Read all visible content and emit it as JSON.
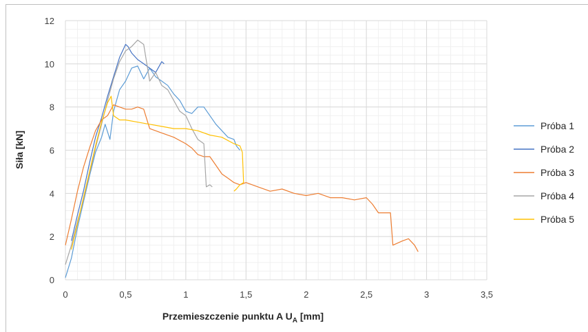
{
  "chart_data": {
    "type": "line",
    "xlabel": "Przemieszczenie punktu A U",
    "xlabel_sub": "A",
    "xlabel_unit": " [mm]",
    "ylabel": "Siła [kN]",
    "xlim": [
      0,
      3.5
    ],
    "ylim": [
      0,
      12
    ],
    "x_ticks": [
      "0",
      "0,5",
      "1",
      "1,5",
      "2",
      "2,5",
      "3",
      "3,5"
    ],
    "y_ticks": [
      "0",
      "2",
      "4",
      "6",
      "8",
      "10",
      "12"
    ],
    "grid": true,
    "legend_position": "right",
    "series": [
      {
        "name": "Próba 1",
        "color": "#5b9bd5",
        "x": [
          0.0,
          0.05,
          0.1,
          0.15,
          0.2,
          0.25,
          0.3,
          0.33,
          0.37,
          0.4,
          0.45,
          0.5,
          0.55,
          0.6,
          0.65,
          0.7,
          0.75,
          0.8,
          0.85,
          0.9,
          0.95,
          1.0,
          1.05,
          1.1,
          1.15,
          1.2,
          1.25,
          1.3,
          1.35,
          1.4,
          1.42,
          1.45
        ],
        "y": [
          0.1,
          1.0,
          2.4,
          3.6,
          4.8,
          5.9,
          6.6,
          7.2,
          6.5,
          7.8,
          8.8,
          9.2,
          9.8,
          9.9,
          9.3,
          9.8,
          9.4,
          9.2,
          9.0,
          8.6,
          8.3,
          7.8,
          7.7,
          8.0,
          8.0,
          7.6,
          7.2,
          6.9,
          6.6,
          6.5,
          6.2,
          6.0
        ]
      },
      {
        "name": "Próba 2",
        "color": "#4472c4",
        "x": [
          0.05,
          0.1,
          0.15,
          0.2,
          0.25,
          0.3,
          0.35,
          0.4,
          0.45,
          0.5,
          0.52,
          0.55,
          0.6,
          0.65,
          0.7,
          0.75,
          0.8,
          0.82
        ],
        "y": [
          1.8,
          3.0,
          4.1,
          5.4,
          6.6,
          7.5,
          8.5,
          9.4,
          10.3,
          10.9,
          10.8,
          10.5,
          10.2,
          10.0,
          9.8,
          9.6,
          10.1,
          10.0
        ]
      },
      {
        "name": "Próba 3",
        "color": "#ed7d31",
        "x": [
          0.0,
          0.05,
          0.1,
          0.15,
          0.2,
          0.25,
          0.3,
          0.35,
          0.4,
          0.45,
          0.5,
          0.55,
          0.6,
          0.65,
          0.7,
          0.8,
          0.9,
          1.0,
          1.05,
          1.1,
          1.15,
          1.2,
          1.25,
          1.3,
          1.35,
          1.4,
          1.45,
          1.5,
          1.6,
          1.7,
          1.8,
          1.9,
          2.0,
          2.1,
          2.2,
          2.3,
          2.4,
          2.5,
          2.55,
          2.6,
          2.65,
          2.7,
          2.72,
          2.8,
          2.85,
          2.9,
          2.93
        ],
        "y": [
          1.6,
          2.8,
          4.1,
          5.2,
          6.1,
          6.9,
          7.4,
          7.6,
          8.1,
          8.0,
          7.9,
          7.9,
          8.0,
          7.9,
          7.0,
          6.8,
          6.6,
          6.3,
          6.1,
          5.8,
          5.7,
          5.7,
          5.3,
          4.9,
          4.7,
          4.5,
          4.4,
          4.5,
          4.3,
          4.1,
          4.2,
          4.0,
          3.9,
          4.0,
          3.8,
          3.8,
          3.7,
          3.8,
          3.5,
          3.1,
          3.1,
          3.1,
          1.6,
          1.8,
          1.9,
          1.6,
          1.3
        ]
      },
      {
        "name": "Próba 4",
        "color": "#a5a5a5",
        "x": [
          0.0,
          0.05,
          0.1,
          0.15,
          0.2,
          0.25,
          0.3,
          0.35,
          0.4,
          0.45,
          0.5,
          0.55,
          0.6,
          0.65,
          0.7,
          0.75,
          0.8,
          0.85,
          0.9,
          0.95,
          1.0,
          1.05,
          1.1,
          1.15,
          1.17,
          1.2,
          1.22
        ],
        "y": [
          0.7,
          1.6,
          2.7,
          3.7,
          4.9,
          6.1,
          7.2,
          8.3,
          9.3,
          10.1,
          10.6,
          10.8,
          11.1,
          10.9,
          9.2,
          9.6,
          9.0,
          8.8,
          8.3,
          7.8,
          7.6,
          7.0,
          6.5,
          6.3,
          4.3,
          4.4,
          4.3
        ]
      },
      {
        "name": "Próba 5",
        "color": "#ffc000",
        "x": [
          0.05,
          0.1,
          0.15,
          0.2,
          0.25,
          0.3,
          0.35,
          0.38,
          0.4,
          0.45,
          0.5,
          0.6,
          0.7,
          0.8,
          0.9,
          1.0,
          1.1,
          1.2,
          1.3,
          1.4,
          1.45,
          1.47,
          1.48,
          1.45,
          1.42,
          1.4
        ],
        "y": [
          1.4,
          2.6,
          3.8,
          5.0,
          6.2,
          7.3,
          8.2,
          8.5,
          7.6,
          7.4,
          7.4,
          7.3,
          7.2,
          7.1,
          7.0,
          7.0,
          6.9,
          6.7,
          6.6,
          6.3,
          6.2,
          5.9,
          4.5,
          4.4,
          4.2,
          4.1
        ]
      }
    ]
  }
}
